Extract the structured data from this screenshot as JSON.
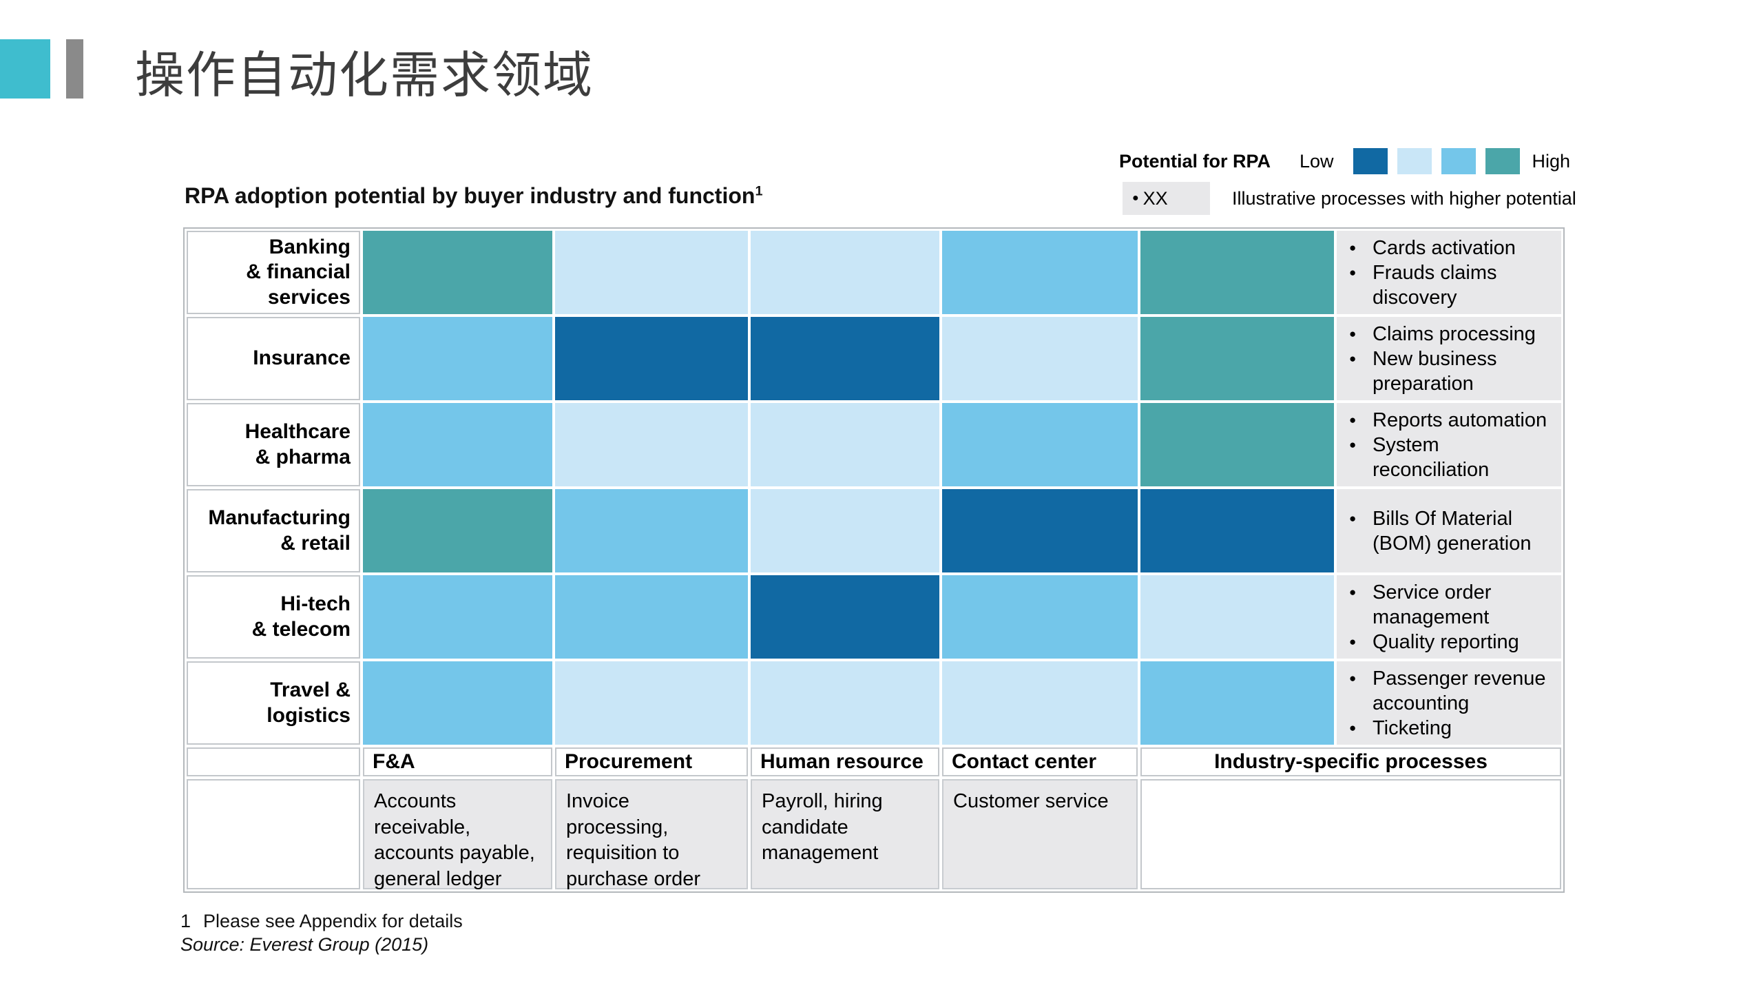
{
  "slide": {
    "title": "操作自动化需求领域",
    "accent": {
      "teal": "#3fbdce",
      "gray": "#8a8a8a"
    }
  },
  "legend": {
    "title": "Potential for RPA",
    "low_label": "Low",
    "high_label": "High",
    "scale_colors": [
      "#1169a3",
      "#c9e6f7",
      "#74c6ea",
      "#4ba6a9"
    ],
    "marker": {
      "symbol": "●",
      "label": "XX",
      "box_color": "#e8e8ea"
    },
    "marker_note": "Illustrative processes with higher potential"
  },
  "chart": {
    "title": "RPA adoption potential by buyer industry and function",
    "footnote_marker": "1"
  },
  "chart_data": {
    "type": "heatmap",
    "title": "RPA adoption potential by buyer industry and function",
    "scale_label": "Potential for RPA",
    "scale_note": "Levels run Low to High: 1 = dark blue (Low), 2 = pale blue, 3 = sky blue, 4 = teal (High)",
    "palette": {
      "1": "#1169a3",
      "2": "#c9e6f7",
      "3": "#74c6ea",
      "4": "#4ba6a9"
    },
    "process_cell_background": "#e8e8ea",
    "columns": [
      "F&A",
      "Procurement",
      "Human resource",
      "Contact center",
      "Industry-specific processes"
    ],
    "column_descriptions": [
      "Accounts receivable, accounts payable, general ledger",
      "Invoice processing, requisition to purchase order",
      "Payroll, hiring candidate management",
      "Customer service",
      ""
    ],
    "rows": [
      "Banking & financial services",
      "Insurance",
      "Healthcare & pharma",
      "Manufacturing & retail",
      "Hi-tech & telecom",
      "Travel & logistics"
    ],
    "matrix": [
      {
        "industry": "Banking & financial services",
        "label_lines": [
          "Banking",
          "& financial",
          "services"
        ],
        "levels": [
          4,
          2,
          2,
          3,
          4
        ],
        "processes": [
          "Cards activation",
          "Frauds claims discovery"
        ]
      },
      {
        "industry": "Insurance",
        "label_lines": [
          "Insurance"
        ],
        "levels": [
          3,
          1,
          1,
          2,
          4
        ],
        "processes": [
          "Claims processing",
          "New business preparation"
        ]
      },
      {
        "industry": "Healthcare & pharma",
        "label_lines": [
          "Healthcare",
          "& pharma"
        ],
        "levels": [
          3,
          2,
          2,
          3,
          4
        ],
        "processes": [
          "Reports automation",
          "System reconciliation"
        ]
      },
      {
        "industry": "Manufacturing & retail",
        "label_lines": [
          "Manufacturing",
          "& retail"
        ],
        "levels": [
          4,
          3,
          2,
          1,
          1
        ],
        "processes": [
          "Bills Of Material (BOM) generation"
        ]
      },
      {
        "industry": "Hi-tech & telecom",
        "label_lines": [
          "Hi-tech",
          "& telecom"
        ],
        "levels": [
          3,
          3,
          1,
          3,
          2
        ],
        "processes": [
          "Service order management",
          "Quality reporting"
        ]
      },
      {
        "industry": "Travel & logistics",
        "label_lines": [
          "Travel &",
          "logistics"
        ],
        "levels": [
          3,
          2,
          2,
          2,
          3
        ],
        "processes": [
          "Passenger revenue accounting",
          "Ticketing"
        ]
      }
    ]
  },
  "footnotes": {
    "note_number": "1",
    "note_text": "Please see Appendix for details",
    "source": "Source: Everest Group (2015)"
  }
}
